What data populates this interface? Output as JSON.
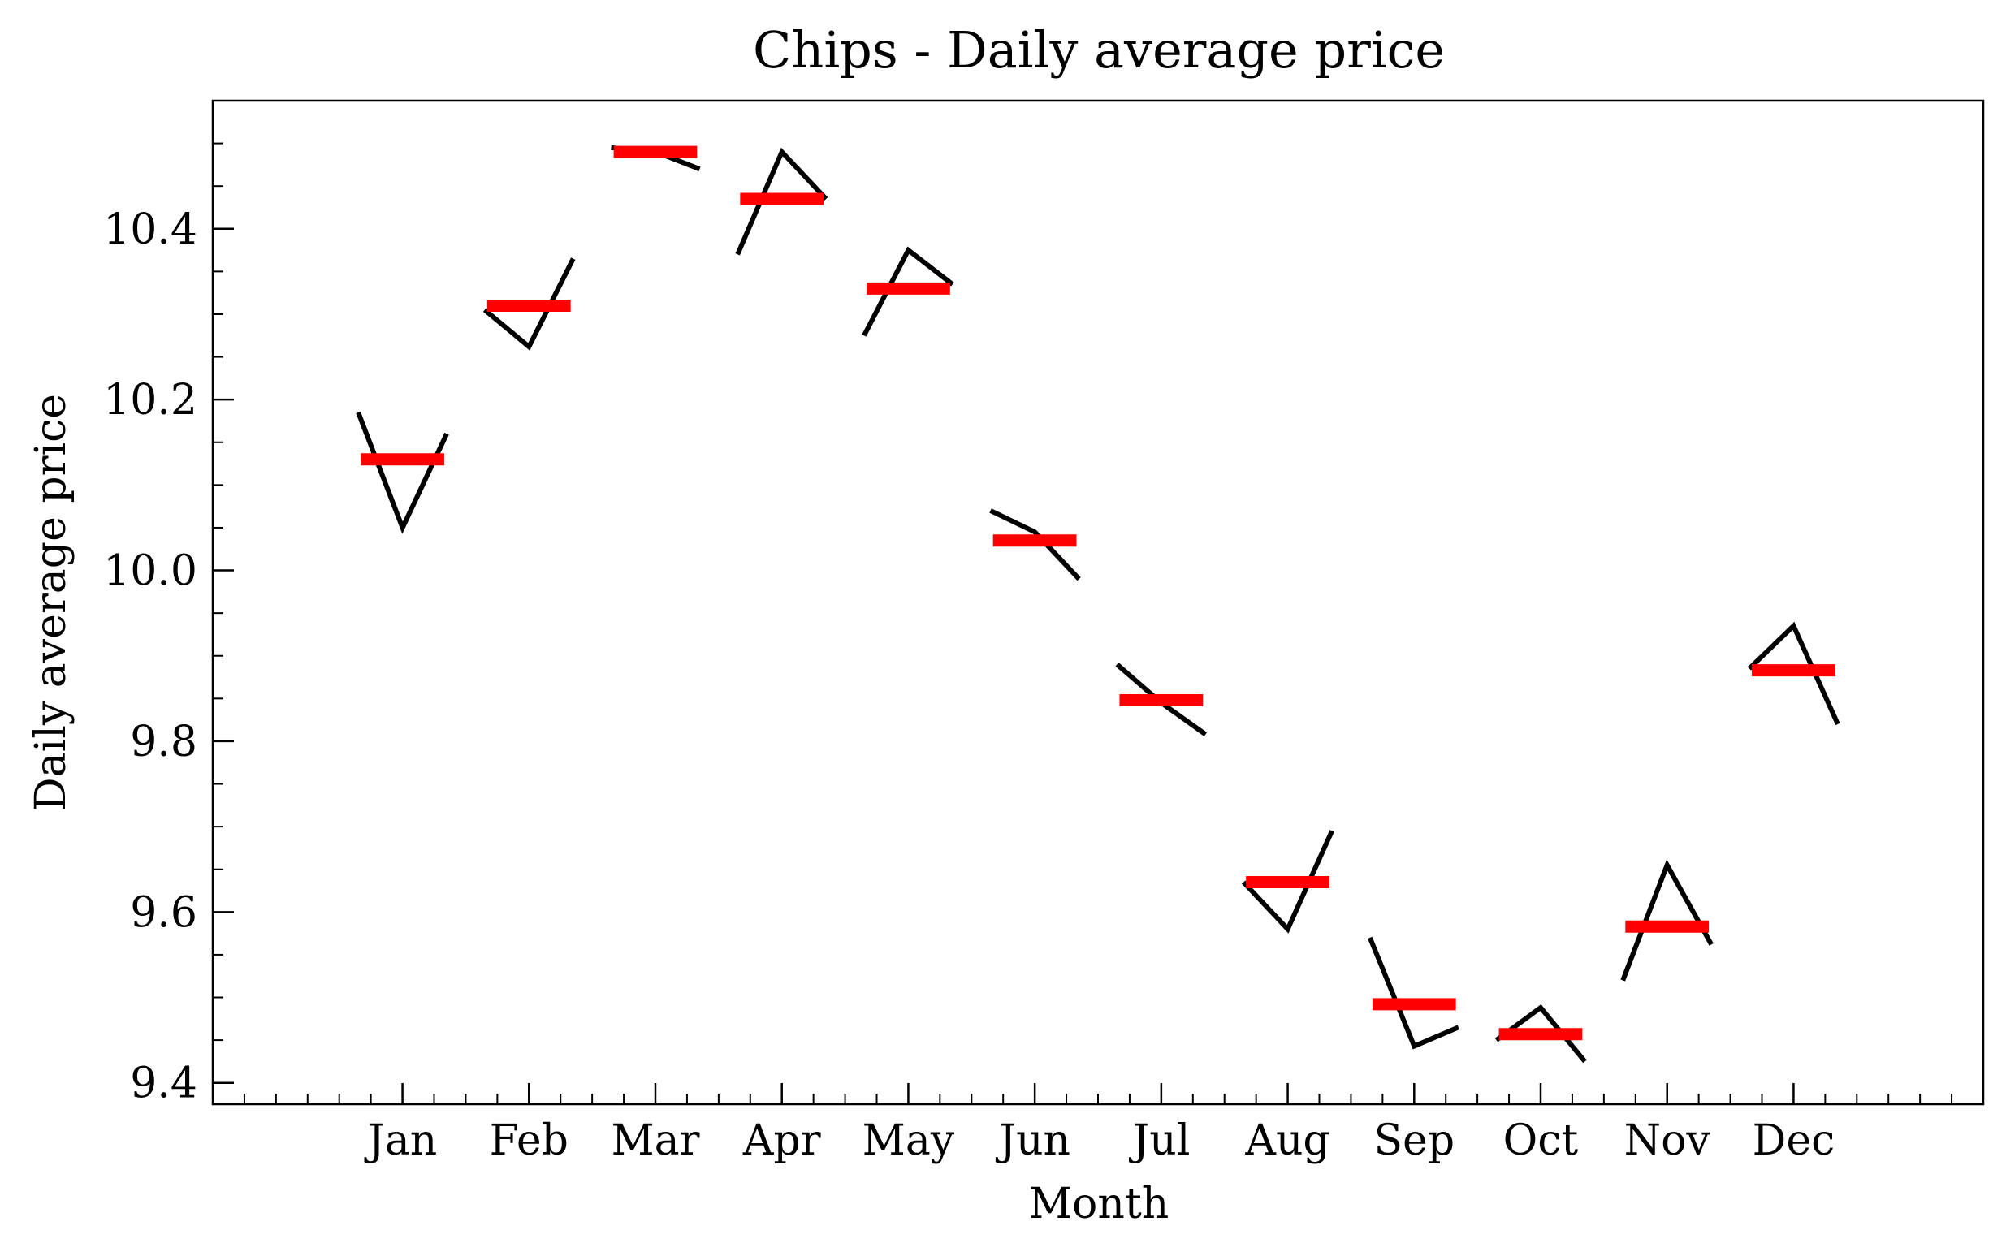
{
  "chart_data": {
    "type": "line",
    "title": "Chips - Daily average price",
    "xlabel": "Month",
    "ylabel": "Daily average price",
    "categories": [
      "Jan",
      "Feb",
      "Mar",
      "Apr",
      "May",
      "Jun",
      "Jul",
      "Aug",
      "Sep",
      "Oct",
      "Nov",
      "Dec"
    ],
    "ylim": [
      9.375,
      10.55
    ],
    "xlim": [
      -1.5,
      12.5
    ],
    "yticks": [
      {
        "value": 9.4,
        "label": "9.4"
      },
      {
        "value": 9.6,
        "label": "9.6"
      },
      {
        "value": 9.8,
        "label": "9.8"
      },
      {
        "value": 10.0,
        "label": "10.0"
      },
      {
        "value": 10.2,
        "label": "10.2"
      },
      {
        "value": 10.4,
        "label": "10.4"
      }
    ],
    "month_means": [
      10.13,
      10.31,
      10.49,
      10.435,
      10.33,
      10.035,
      9.848,
      9.635,
      9.492,
      9.457,
      9.583,
      9.883
    ],
    "daily_segments": [
      [
        10.185,
        10.05,
        10.16
      ],
      [
        10.305,
        10.262,
        10.365
      ],
      [
        10.495,
        10.49,
        10.47
      ],
      [
        10.37,
        10.49,
        10.435
      ],
      [
        10.275,
        10.375,
        10.335
      ],
      [
        10.07,
        10.045,
        9.99
      ],
      [
        9.89,
        9.845,
        9.808
      ],
      [
        9.635,
        9.58,
        9.695
      ],
      [
        9.57,
        9.443,
        9.465
      ],
      [
        9.45,
        9.488,
        9.425
      ],
      [
        9.52,
        9.655,
        9.562
      ],
      [
        9.885,
        9.935,
        9.82
      ]
    ],
    "colors": {
      "mean_bar": "#ff0000",
      "daily_line": "#000000"
    },
    "grid": false,
    "legend": "none"
  }
}
